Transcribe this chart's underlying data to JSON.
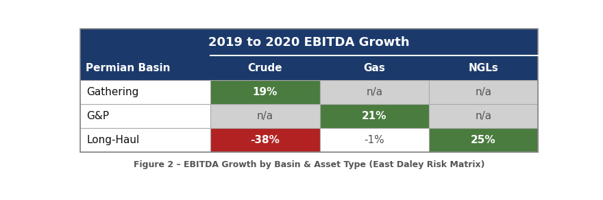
{
  "title_main": "2019 to 2020 EBITDA Growth",
  "col_header_left": "Permian Basin",
  "col_headers": [
    "Crude",
    "Gas",
    "NGLs"
  ],
  "rows": [
    "Gathering",
    "G&P",
    "Long-Haul"
  ],
  "values": [
    [
      "19%",
      "n/a",
      "n/a"
    ],
    [
      "n/a",
      "21%",
      "n/a"
    ],
    [
      "-38%",
      "-1%",
      "25%"
    ]
  ],
  "cell_colors": [
    [
      "#4a7c3f",
      "#d0d0d0",
      "#d0d0d0"
    ],
    [
      "#d0d0d0",
      "#4a7c3f",
      "#d0d0d0"
    ],
    [
      "#b22222",
      "#ffffff",
      "#4a7c3f"
    ]
  ],
  "text_colors": [
    [
      "#ffffff",
      "#555555",
      "#555555"
    ],
    [
      "#555555",
      "#ffffff",
      "#555555"
    ],
    [
      "#ffffff",
      "#555555",
      "#ffffff"
    ]
  ],
  "header_bg": "#1b3a6b",
  "header_text": "#ffffff",
  "row_label_bg": "#ffffff",
  "row_label_text": "#111111",
  "figure_caption": "Figure 2 – EBITDA Growth by Basin & Asset Type (East Daley Risk Matrix)",
  "figsize": [
    8.8,
    2.92
  ],
  "dpi": 100,
  "border_color": "#aaaaaa",
  "fig_bg": "#ffffff"
}
